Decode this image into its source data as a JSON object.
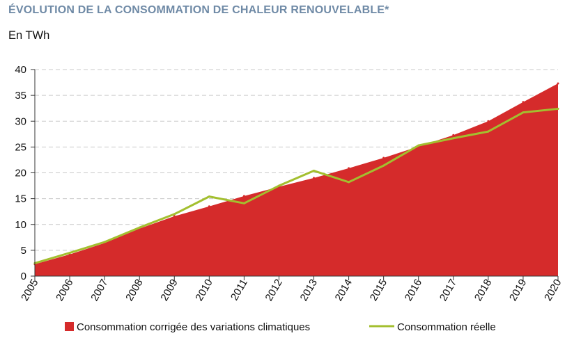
{
  "header": {
    "title": "ÉVOLUTION DE LA CONSOMMATION DE CHALEUR RENOUVELABLE*",
    "unit": "En TWh"
  },
  "chart_data": {
    "type": "area",
    "ylabel": "En TWh",
    "ylim": [
      0,
      40
    ],
    "yticks": [
      0,
      5,
      10,
      15,
      20,
      25,
      30,
      35,
      40
    ],
    "grid": true,
    "legend_position": "bottom",
    "categories": [
      "2005",
      "2006",
      "2007",
      "2008",
      "2009",
      "2010",
      "2011",
      "2012",
      "2013",
      "2014",
      "2015",
      "2016",
      "2017",
      "2018",
      "2019",
      "2020"
    ],
    "series": [
      {
        "name": "Consommation corrigée des variations climatiques",
        "type": "area",
        "color": "#d52b2b",
        "values": [
          2.3,
          4.2,
          6.4,
          9.2,
          11.6,
          13.5,
          15.5,
          17.3,
          19.0,
          20.9,
          22.9,
          25.1,
          27.3,
          30.0,
          33.7,
          37.3
        ]
      },
      {
        "name": "Consommation réelle",
        "type": "line",
        "color": "#a3bf2f",
        "values": [
          2.5,
          4.5,
          6.6,
          9.4,
          12.0,
          15.4,
          14.1,
          17.5,
          20.4,
          18.2,
          21.4,
          25.3,
          26.7,
          28.0,
          31.7,
          32.4
        ]
      }
    ]
  }
}
